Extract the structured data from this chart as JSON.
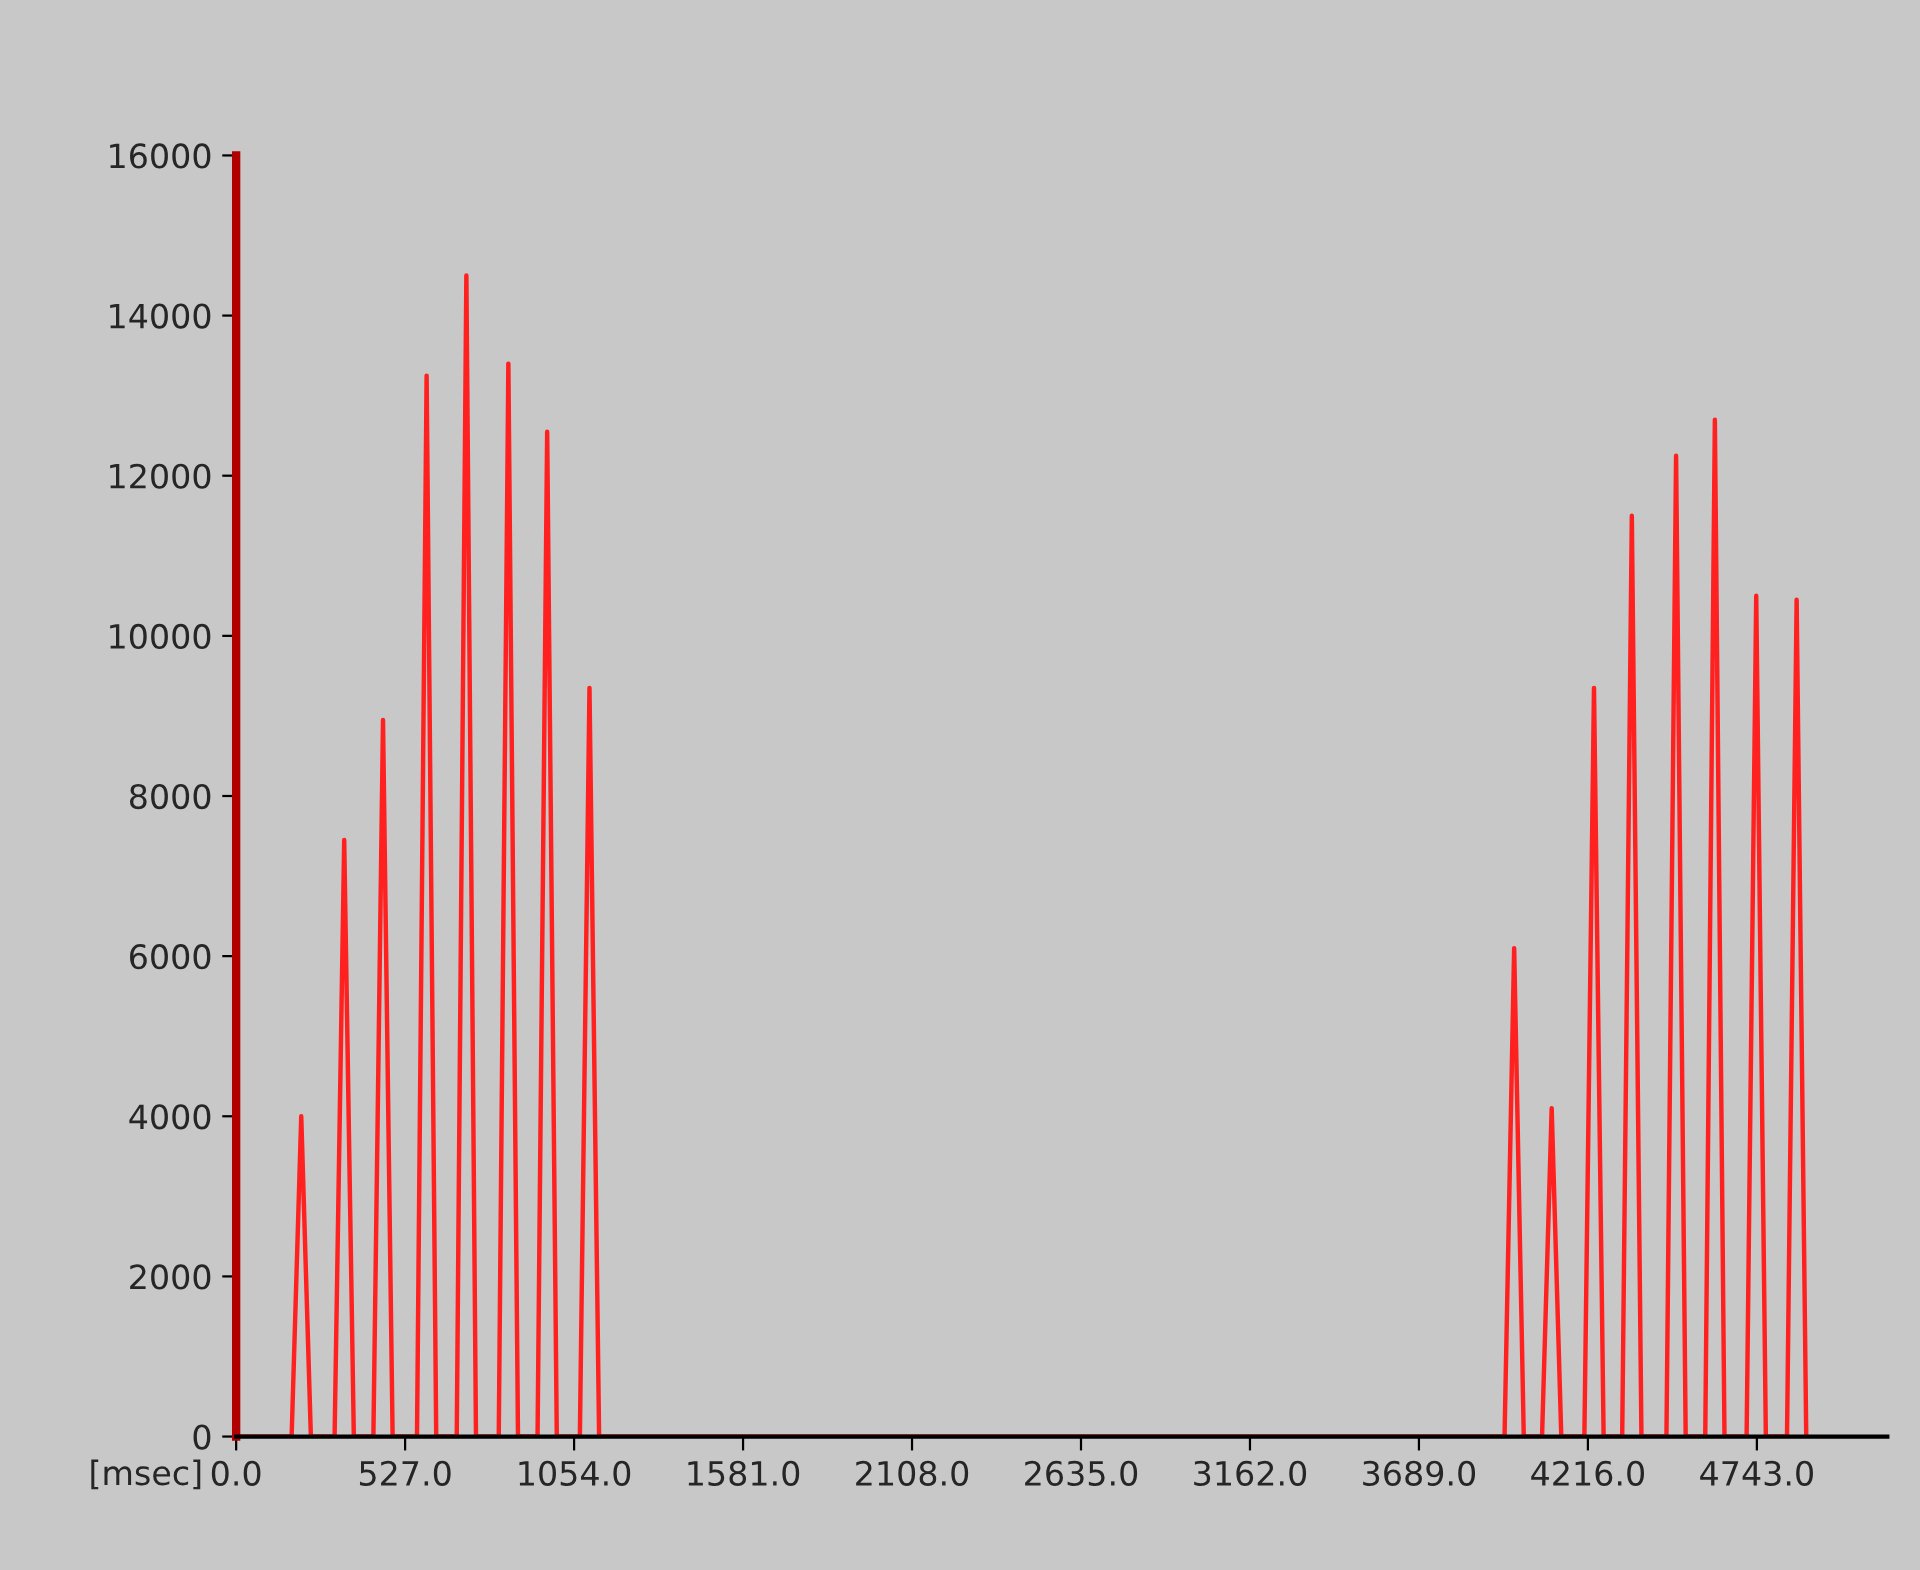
{
  "chart_data": {
    "type": "line",
    "xlabel": "[msec]",
    "x": [
      0,
      173,
      203,
      233,
      307,
      337,
      367,
      428,
      458,
      488,
      564,
      594,
      624,
      688,
      718,
      748,
      819,
      849,
      879,
      940,
      970,
      1000,
      1072,
      1102,
      1132,
      3956,
      3986,
      4016,
      4073,
      4103,
      4133,
      4205,
      4235,
      4265,
      4323,
      4353,
      4383,
      4461,
      4491,
      4521,
      4582,
      4612,
      4642,
      4711,
      4741,
      4771,
      4837,
      4867,
      4897
    ],
    "series": [
      {
        "color": "#ff2020",
        "values": [
          0,
          0,
          4000,
          0,
          0,
          7450,
          0,
          0,
          8950,
          0,
          0,
          13250,
          0,
          0,
          14500,
          0,
          0,
          13400,
          0,
          0,
          12550,
          0,
          0,
          9350,
          0,
          0,
          6100,
          0,
          0,
          4100,
          0,
          0,
          9350,
          0,
          0,
          11500,
          0,
          0,
          12250,
          0,
          0,
          12700,
          0,
          0,
          10500,
          0,
          0,
          10450,
          0
        ]
      }
    ],
    "xlim": [
      0,
      5150
    ],
    "ylim": [
      0,
      16000
    ],
    "xticks": [
      {
        "value": 0,
        "label": "0.0"
      },
      {
        "value": 527,
        "label": "527.0"
      },
      {
        "value": 1054,
        "label": "1054.0"
      },
      {
        "value": 1581,
        "label": "1581.0"
      },
      {
        "value": 2108,
        "label": "2108.0"
      },
      {
        "value": 2635,
        "label": "2635.0"
      },
      {
        "value": 3162,
        "label": "3162.0"
      },
      {
        "value": 3689,
        "label": "3689.0"
      },
      {
        "value": 4216,
        "label": "4216.0"
      },
      {
        "value": 4743,
        "label": "4743.0"
      }
    ],
    "yticks": [
      0,
      2000,
      4000,
      6000,
      8000,
      10000,
      12000,
      14000,
      16000
    ],
    "marker": "none",
    "line_style": "solid"
  }
}
